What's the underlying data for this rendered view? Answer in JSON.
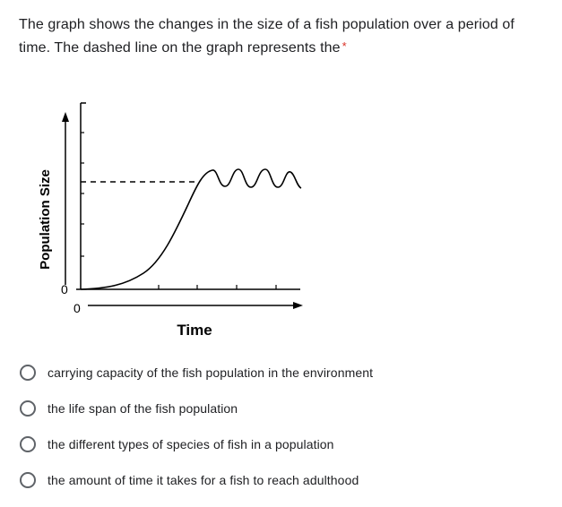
{
  "question": {
    "text": "The graph shows the changes in the size of a fish population over a period of time. The dashed line on the graph represents the",
    "required_marker": "*"
  },
  "figure": {
    "y_axis_label": "Population Size",
    "x_axis_label": "Time",
    "y_origin_label": "0",
    "x_origin_label": "0"
  },
  "options": [
    {
      "label": "carrying capacity of the fish population in the environment"
    },
    {
      "label": "the life span of the fish population"
    },
    {
      "label": "the different types of species of fish in a population"
    },
    {
      "label": "the amount of time it takes for a fish to reach adulthood"
    }
  ],
  "colors": {
    "text": "#202124",
    "required": "#d93025",
    "radio_border": "#5f6368"
  }
}
